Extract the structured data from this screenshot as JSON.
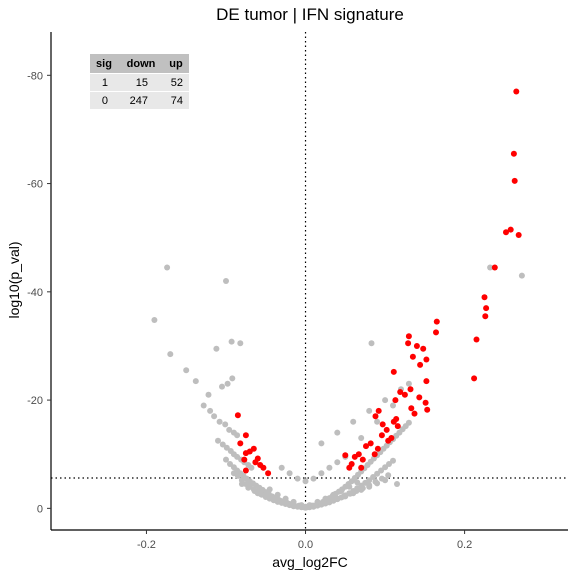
{
  "chart_data": {
    "type": "scatter",
    "title": "DE tumor | IFN signature",
    "xlabel": "avg_log2FC",
    "ylabel": "log10(p_val)",
    "xlim": [
      -0.32,
      0.33
    ],
    "ylim": [
      4,
      -88
    ],
    "x_ticks": [
      -0.2,
      0.0,
      0.2
    ],
    "x_tick_labels": [
      "-0.2",
      "0.0",
      "0.2"
    ],
    "y_ticks": [
      0,
      -20,
      -40,
      -60,
      -80
    ],
    "y_tick_labels": [
      "0",
      "-20",
      "-40",
      "-60",
      "-80"
    ],
    "reference_lines": {
      "vertical_x": 0.0,
      "horizontal_y": -5.6
    },
    "colors": {
      "nonsig": "#bebebe",
      "sig": "#ff0000",
      "axis": "#000000",
      "table_header": "#c0c0c0",
      "table_row": "#e8e8e8"
    },
    "grid": false,
    "summary_table": {
      "columns": [
        "sig",
        "down",
        "up"
      ],
      "rows": [
        [
          "1",
          "15",
          "52"
        ],
        [
          "0",
          "247",
          "74"
        ]
      ]
    },
    "series": [
      {
        "sig": 1,
        "x": [
          0.265,
          0.262,
          0.263,
          0.252,
          0.258,
          0.268,
          0.238,
          0.225,
          0.227,
          0.226,
          0.215,
          0.212,
          0.165,
          0.164,
          0.148,
          0.13,
          0.129,
          0.14,
          0.135,
          0.152,
          0.144,
          0.152,
          0.132,
          0.111,
          0.125,
          0.143,
          0.151,
          0.153,
          0.113,
          0.119,
          0.133,
          0.137,
          0.114,
          0.092,
          0.088,
          0.097,
          0.102,
          0.096,
          0.111,
          0.116,
          0.104,
          0.091,
          0.082,
          0.076,
          0.087,
          0.067,
          0.062,
          0.072,
          0.055,
          0.058,
          0.05,
          0.07,
          -0.085,
          -0.075,
          -0.082,
          -0.075,
          -0.065,
          -0.07,
          -0.077,
          -0.06,
          -0.057,
          -0.063,
          -0.075,
          -0.053,
          -0.047,
          0.108
        ],
        "y": [
          -77,
          -65.5,
          -60.5,
          -51,
          -51.5,
          -50.5,
          -44.5,
          -39,
          -37,
          -35.5,
          -31.2,
          -24,
          -34.5,
          -32.5,
          -29.5,
          -31.8,
          -30.5,
          -30,
          -28,
          -27.5,
          -26.5,
          -23.5,
          -22,
          -25.2,
          -21,
          -20.5,
          -19.5,
          -18.2,
          -20,
          -21.5,
          -18.5,
          -17.5,
          -16.5,
          -18,
          -17,
          -15.5,
          -14.5,
          -13.5,
          -16,
          -15.2,
          -12.5,
          -11,
          -12,
          -11.5,
          -10,
          -10,
          -9.5,
          -9,
          -7.5,
          -8.2,
          -9.8,
          -7.5,
          -17.2,
          -13.5,
          -12,
          -10.2,
          -11,
          -10.5,
          -9,
          -9.2,
          -8,
          -8.5,
          -7,
          -7.5,
          -6.5,
          -13
        ]
      },
      {
        "sig": 0,
        "x": [
          -0.174,
          -0.1,
          -0.19,
          -0.17,
          -0.112,
          -0.082,
          -0.093,
          -0.15,
          -0.138,
          -0.122,
          -0.105,
          -0.098,
          -0.092,
          -0.128,
          -0.12,
          -0.115,
          -0.108,
          -0.101,
          -0.096,
          -0.09,
          -0.086,
          -0.11,
          -0.104,
          -0.099,
          -0.094,
          -0.09,
          -0.086,
          -0.081,
          -0.077,
          -0.072,
          -0.068,
          -0.1,
          -0.095,
          -0.09,
          -0.086,
          -0.082,
          -0.078,
          -0.074,
          -0.07,
          -0.066,
          -0.062,
          -0.058,
          -0.054,
          -0.05,
          -0.046,
          -0.042,
          -0.038,
          -0.034,
          -0.03,
          -0.026,
          -0.022,
          -0.018,
          -0.014,
          -0.01,
          -0.006,
          -0.002,
          0.002,
          0.006,
          0.01,
          0.014,
          0.018,
          0.022,
          0.026,
          0.03,
          0.034,
          0.038,
          0.042,
          0.046,
          0.05,
          0.054,
          0.058,
          0.062,
          0.066,
          0.07,
          0.074,
          0.078,
          0.082,
          0.086,
          0.09,
          0.094,
          0.098,
          0.102,
          0.106,
          0.11,
          0.114,
          0.118,
          0.122,
          0.126,
          0.13,
          -0.09,
          -0.085,
          -0.08,
          -0.075,
          -0.07,
          -0.065,
          -0.06,
          -0.055,
          -0.05,
          -0.045,
          -0.04,
          -0.035,
          -0.03,
          -0.025,
          -0.02,
          -0.015,
          -0.01,
          -0.005,
          0.0,
          0.005,
          0.01,
          0.015,
          0.02,
          0.025,
          0.03,
          0.035,
          0.04,
          0.045,
          0.05,
          0.055,
          0.06,
          0.065,
          0.07,
          0.075,
          0.08,
          0.085,
          0.09,
          0.095,
          0.1,
          0.105,
          0.11,
          -0.08,
          -0.072,
          -0.064,
          -0.056,
          -0.048,
          -0.04,
          -0.032,
          -0.024,
          -0.016,
          -0.008,
          0.0,
          0.008,
          0.016,
          0.024,
          0.032,
          0.04,
          0.048,
          0.056,
          0.064,
          0.072,
          0.08,
          0.088,
          0.096,
          0.104,
          -0.06,
          -0.05,
          -0.04,
          -0.03,
          -0.02,
          -0.01,
          0.01,
          0.02,
          0.03,
          0.04,
          0.05,
          0.06,
          0.07,
          0.08,
          0.09,
          0.1,
          -0.045,
          -0.035,
          -0.025,
          -0.015,
          -0.005,
          0.005,
          0.015,
          0.025,
          0.035,
          0.045,
          0.055,
          0.065,
          -0.03,
          -0.02,
          -0.01,
          0.0,
          0.01,
          0.02,
          0.03,
          0.04,
          0.05,
          0.02,
          0.04,
          0.06,
          0.08,
          0.1,
          0.12,
          0.07,
          0.09,
          0.11,
          0.13,
          0.083,
          0.232,
          0.272,
          0.115
        ],
        "y": [
          -44.5,
          -42,
          -34.8,
          -28.5,
          -29.5,
          -30.5,
          -30.8,
          -25.5,
          -23.5,
          -21,
          -22.5,
          -23,
          -24,
          -19,
          -18,
          -17,
          -16,
          -15.5,
          -14.5,
          -14,
          -13.5,
          -12.5,
          -11.8,
          -11.2,
          -10.6,
          -10,
          -9.5,
          -9,
          -8.5,
          -8,
          -7.5,
          -9,
          -8.2,
          -7.6,
          -7,
          -6.5,
          -6,
          -5.5,
          -5,
          -4.6,
          -4.2,
          -3.8,
          -3.4,
          -3,
          -2.6,
          -2.2,
          -1.9,
          -1.6,
          -1.3,
          -1.1,
          -0.9,
          -0.7,
          -0.5,
          -0.4,
          -0.3,
          -0.2,
          -0.2,
          -0.3,
          -0.5,
          -0.7,
          -0.9,
          -1.2,
          -1.5,
          -1.9,
          -2.3,
          -2.7,
          -3.1,
          -3.5,
          -4,
          -4.5,
          -5,
          -5.6,
          -6.2,
          -6.8,
          -7.4,
          -8,
          -8.6,
          -9.2,
          -9.8,
          -10.4,
          -11,
          -11.6,
          -12.2,
          -12.8,
          -13.4,
          -14,
          -14.6,
          -15.2,
          -15.8,
          -6.5,
          -6,
          -5.2,
          -4.5,
          -4,
          -3.5,
          -3,
          -2.5,
          -2.1,
          -1.8,
          -1.5,
          -1.2,
          -1,
          -0.8,
          -0.6,
          -0.4,
          -0.3,
          -0.2,
          -0.1,
          -0.2,
          -0.3,
          -0.5,
          -0.7,
          -0.9,
          -1.1,
          -1.4,
          -1.7,
          -2,
          -2.4,
          -2.8,
          -3.2,
          -3.7,
          -4.2,
          -4.7,
          -5.2,
          -5.8,
          -6.4,
          -7,
          -7.6,
          -8.2,
          -8.8,
          -4.5,
          -3.8,
          -3.2,
          -2.6,
          -2.2,
          -1.8,
          -1.4,
          -1.1,
          -0.8,
          -0.5,
          -0.3,
          -0.5,
          -0.8,
          -1.1,
          -1.4,
          -1.8,
          -2.2,
          -2.7,
          -3.2,
          -3.7,
          -4.3,
          -4.9,
          -5.5,
          -6.1,
          -2.8,
          -2.2,
          -1.7,
          -1.2,
          -0.8,
          -0.4,
          -0.4,
          -0.8,
          -1.2,
          -1.7,
          -2.2,
          -2.8,
          -3.4,
          -4,
          -4.6,
          -5.2,
          -3.5,
          -2.5,
          -1.8,
          -1.2,
          -0.6,
          -0.6,
          -1.2,
          -1.8,
          -2.5,
          -3.2,
          -4,
          -4.8,
          -7.5,
          -6.5,
          -5.5,
          -5,
          -5.5,
          -6.5,
          -7.5,
          -8.5,
          -9.5,
          -12,
          -14,
          -16,
          -18,
          -20,
          -22,
          -13,
          -16,
          -19,
          -23,
          -30.5,
          -44.5,
          -43,
          -4.5
        ]
      }
    ]
  }
}
